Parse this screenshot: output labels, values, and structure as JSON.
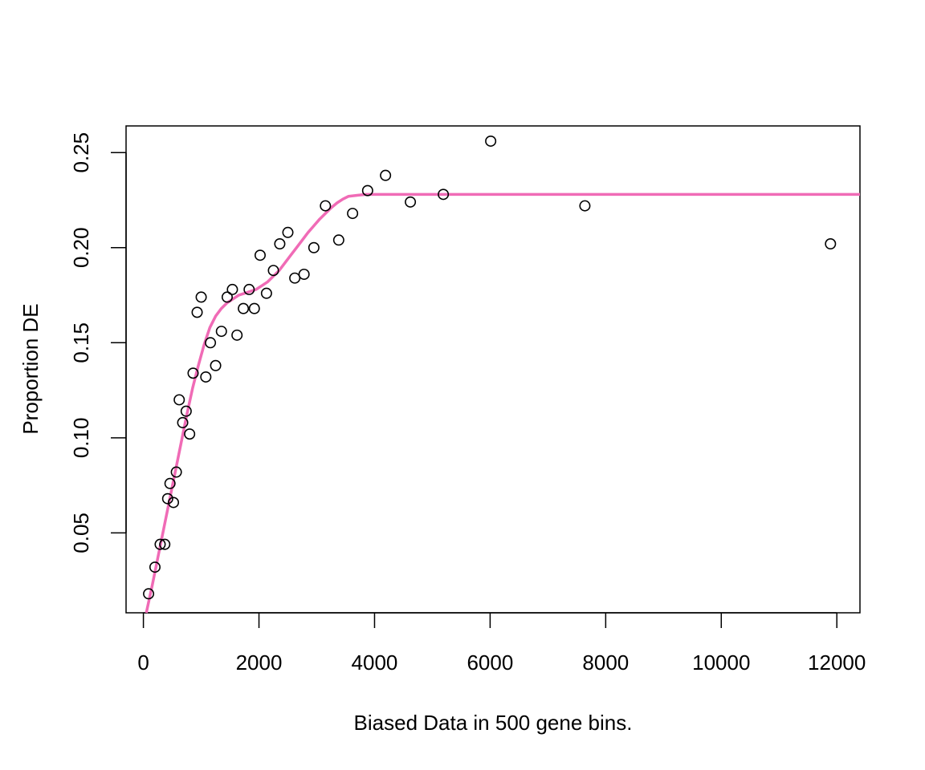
{
  "chart_data": {
    "type": "scatter",
    "title": "",
    "xlabel": "Biased Data in 500 gene bins.",
    "ylabel": "Proportion DE",
    "xlim": [
      -300,
      12400
    ],
    "ylim": [
      0.008,
      0.264
    ],
    "x_ticks": [
      0,
      2000,
      4000,
      6000,
      8000,
      10000,
      12000
    ],
    "x_tick_labels": [
      "0",
      "2000",
      "4000",
      "6000",
      "8000",
      "10000",
      "12000"
    ],
    "y_ticks": [
      0.05,
      0.1,
      0.15,
      0.2,
      0.25
    ],
    "y_tick_labels": [
      "0.05",
      "0.10",
      "0.15",
      "0.20",
      "0.25"
    ],
    "grid": false,
    "legend": "none",
    "series": [
      {
        "type": "scatter",
        "marker": "open-circle",
        "color": "#000000",
        "points": [
          [
            90,
            0.018
          ],
          [
            200,
            0.032
          ],
          [
            290,
            0.044
          ],
          [
            370,
            0.044
          ],
          [
            420,
            0.068
          ],
          [
            460,
            0.076
          ],
          [
            520,
            0.066
          ],
          [
            570,
            0.082
          ],
          [
            620,
            0.12
          ],
          [
            680,
            0.108
          ],
          [
            740,
            0.114
          ],
          [
            800,
            0.102
          ],
          [
            860,
            0.134
          ],
          [
            930,
            0.166
          ],
          [
            1000,
            0.174
          ],
          [
            1080,
            0.132
          ],
          [
            1160,
            0.15
          ],
          [
            1250,
            0.138
          ],
          [
            1350,
            0.156
          ],
          [
            1450,
            0.174
          ],
          [
            1540,
            0.178
          ],
          [
            1620,
            0.154
          ],
          [
            1730,
            0.168
          ],
          [
            1830,
            0.178
          ],
          [
            1920,
            0.168
          ],
          [
            2020,
            0.196
          ],
          [
            2130,
            0.176
          ],
          [
            2250,
            0.188
          ],
          [
            2360,
            0.202
          ],
          [
            2500,
            0.208
          ],
          [
            2620,
            0.184
          ],
          [
            2780,
            0.186
          ],
          [
            2950,
            0.2
          ],
          [
            3150,
            0.222
          ],
          [
            3380,
            0.204
          ],
          [
            3620,
            0.218
          ],
          [
            3880,
            0.23
          ],
          [
            4190,
            0.238
          ],
          [
            4620,
            0.224
          ],
          [
            5190,
            0.228
          ],
          [
            6010,
            0.256
          ],
          [
            7640,
            0.222
          ],
          [
            11890,
            0.202
          ]
        ]
      },
      {
        "type": "line",
        "color": "#f06bb6",
        "points": [
          [
            50,
            0.008
          ],
          [
            150,
            0.022
          ],
          [
            250,
            0.037
          ],
          [
            350,
            0.052
          ],
          [
            450,
            0.067
          ],
          [
            550,
            0.082
          ],
          [
            650,
            0.097
          ],
          [
            750,
            0.112
          ],
          [
            850,
            0.126
          ],
          [
            950,
            0.138
          ],
          [
            1050,
            0.149
          ],
          [
            1150,
            0.158
          ],
          [
            1250,
            0.164
          ],
          [
            1350,
            0.168
          ],
          [
            1450,
            0.171
          ],
          [
            1550,
            0.173
          ],
          [
            1650,
            0.175
          ],
          [
            1750,
            0.176
          ],
          [
            1850,
            0.177
          ],
          [
            1950,
            0.178
          ],
          [
            2050,
            0.18
          ],
          [
            2150,
            0.182
          ],
          [
            2250,
            0.185
          ],
          [
            2350,
            0.188
          ],
          [
            2450,
            0.192
          ],
          [
            2550,
            0.196
          ],
          [
            2650,
            0.2
          ],
          [
            2750,
            0.204
          ],
          [
            2850,
            0.208
          ],
          [
            2950,
            0.2115
          ],
          [
            3050,
            0.215
          ],
          [
            3150,
            0.218
          ],
          [
            3250,
            0.221
          ],
          [
            3350,
            0.2235
          ],
          [
            3450,
            0.2255
          ],
          [
            3550,
            0.227
          ],
          [
            3700,
            0.2275
          ],
          [
            3850,
            0.228
          ],
          [
            4000,
            0.228
          ],
          [
            4300,
            0.228
          ],
          [
            5000,
            0.228
          ],
          [
            6000,
            0.228
          ],
          [
            8000,
            0.228
          ],
          [
            10000,
            0.228
          ],
          [
            12400,
            0.228
          ]
        ]
      }
    ]
  }
}
